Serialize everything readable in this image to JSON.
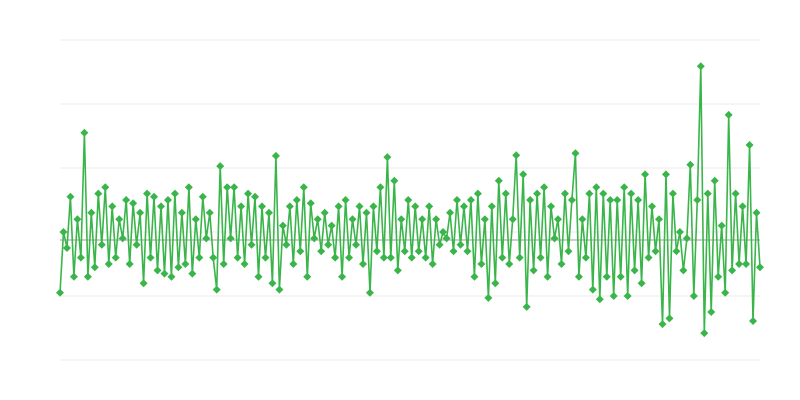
{
  "chart_data": {
    "type": "line",
    "title": "",
    "xlabel": "",
    "ylabel": "",
    "ylim": [
      0,
      5
    ],
    "grid": true,
    "baseline": 1.875,
    "marker": "diamond",
    "colors": {
      "series": "#3ab54a",
      "grid": "#ebebeb",
      "baseline": "#9a9a9a"
    },
    "series": [
      {
        "values": [
          1.05,
          2.0,
          1.75,
          2.55,
          1.3,
          2.2,
          1.6,
          3.55,
          1.3,
          2.3,
          1.45,
          2.6,
          1.8,
          2.7,
          1.5,
          2.4,
          1.6,
          2.2,
          1.9,
          2.5,
          1.5,
          2.45,
          1.8,
          2.3,
          1.2,
          2.6,
          1.6,
          2.55,
          1.4,
          2.4,
          1.35,
          2.5,
          1.3,
          2.6,
          1.45,
          2.3,
          1.5,
          2.7,
          1.35,
          2.2,
          1.6,
          2.55,
          1.9,
          2.3,
          1.6,
          1.1,
          3.03,
          1.5,
          2.7,
          1.9,
          2.7,
          1.6,
          2.4,
          1.5,
          2.6,
          1.8,
          2.55,
          1.3,
          2.4,
          1.6,
          2.3,
          1.2,
          3.19,
          1.1,
          2.1,
          1.8,
          2.4,
          1.5,
          2.5,
          1.7,
          2.7,
          1.3,
          2.45,
          1.9,
          2.2,
          1.7,
          2.3,
          1.8,
          2.1,
          1.6,
          2.4,
          1.3,
          2.5,
          1.6,
          2.2,
          1.8,
          2.4,
          1.5,
          2.3,
          1.05,
          2.4,
          1.7,
          2.7,
          1.6,
          3.17,
          1.6,
          2.8,
          1.4,
          2.2,
          1.7,
          2.5,
          1.6,
          2.4,
          1.7,
          2.2,
          1.6,
          2.4,
          1.5,
          2.2,
          1.8,
          2.0,
          1.9,
          2.3,
          1.7,
          2.5,
          1.8,
          2.4,
          1.7,
          2.5,
          1.3,
          2.6,
          1.5,
          2.2,
          0.97,
          2.4,
          1.2,
          2.8,
          1.6,
          2.6,
          1.5,
          2.2,
          3.2,
          1.6,
          2.9,
          0.83,
          2.5,
          1.4,
          2.6,
          1.6,
          2.7,
          1.3,
          2.4,
          1.9,
          2.2,
          1.5,
          2.6,
          1.7,
          2.5,
          3.23,
          1.3,
          2.2,
          1.6,
          2.6,
          1.1,
          2.7,
          0.95,
          2.6,
          1.3,
          2.5,
          1.0,
          2.5,
          1.3,
          2.7,
          1.0,
          2.6,
          1.4,
          2.5,
          1.2,
          2.9,
          1.6,
          2.4,
          1.7,
          2.2,
          0.56,
          2.9,
          0.65,
          2.6,
          1.7,
          2.0,
          1.4,
          1.9,
          3.05,
          1.0,
          2.5,
          4.59,
          0.42,
          2.6,
          0.75,
          2.8,
          1.3,
          2.1,
          1.05,
          3.83,
          1.4,
          2.6,
          1.5,
          2.4,
          1.5,
          3.36,
          0.61,
          2.3,
          1.45
        ]
      }
    ]
  }
}
